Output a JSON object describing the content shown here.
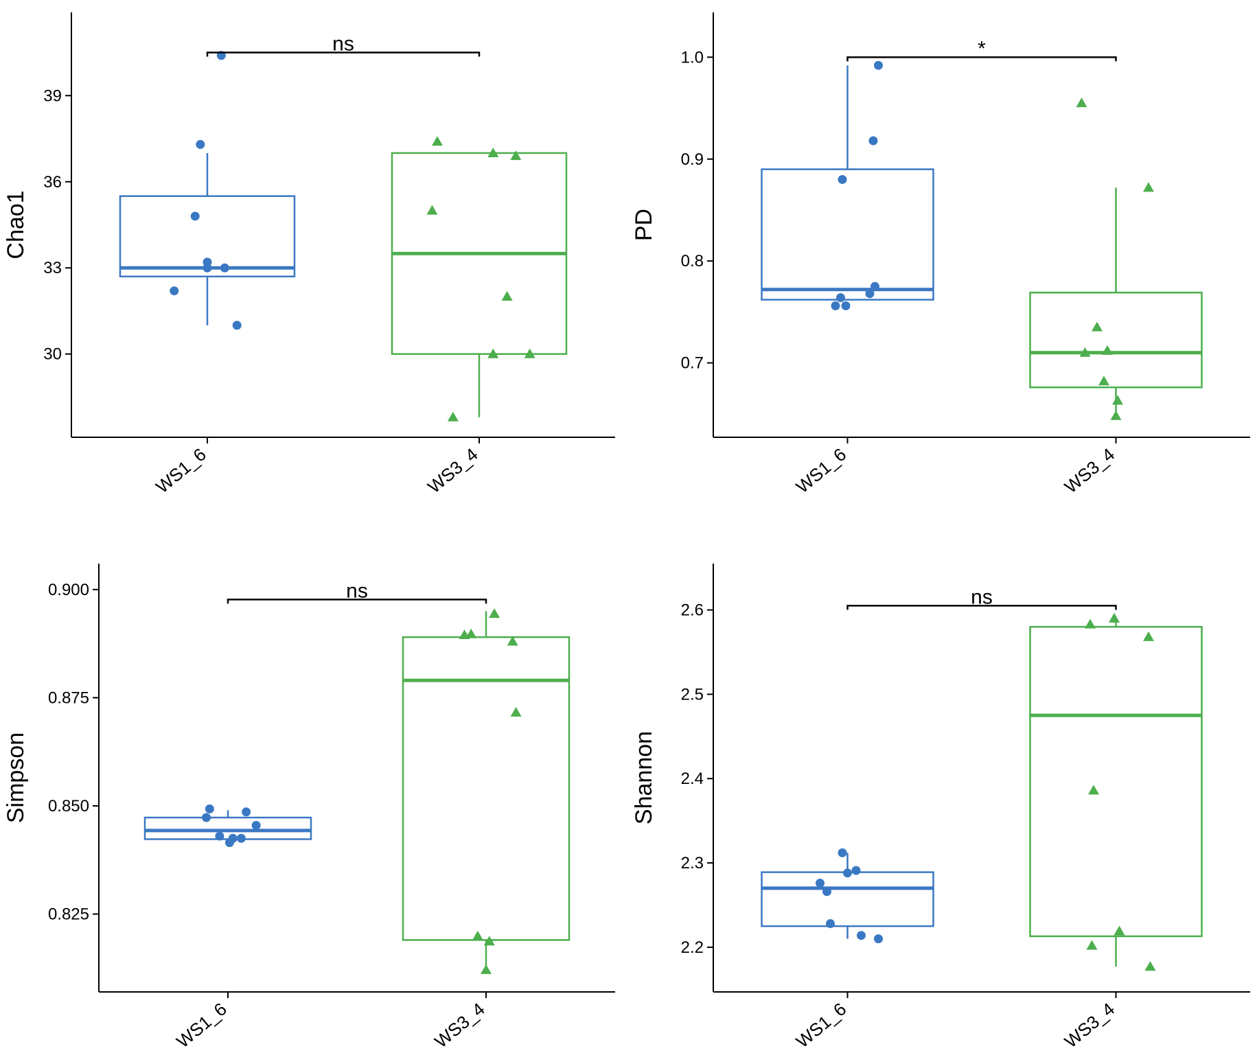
{
  "chart_data": [
    {
      "type": "box",
      "ylabel": "Chao1",
      "ylim": [
        27.1,
        41.9
      ],
      "yticks": [
        30,
        33,
        36,
        39
      ],
      "ytick_labels": [
        "30",
        "33",
        "36",
        "39"
      ],
      "categories": [
        "WS1_6",
        "WS3_4"
      ],
      "colors": [
        "#3a78c3",
        "#4cae4c"
      ],
      "boxes": [
        {
          "name": "WS1_6",
          "whisker_low": 31.0,
          "q1": 32.7,
          "median": 33.0,
          "q3": 35.5,
          "whisker_high": 37.0
        },
        {
          "name": "WS3_4",
          "whisker_low": 27.8,
          "q1": 30.0,
          "median": 33.5,
          "q3": 37.0,
          "whisker_high": 37.0
        }
      ],
      "points": [
        {
          "group": "WS1_6",
          "values": [
            40.4,
            37.3,
            34.8,
            33.2,
            33.0,
            33.0,
            32.2,
            31.0
          ],
          "jitter": [
            0.08,
            -0.04,
            -0.07,
            0.0,
            0.0,
            0.1,
            -0.19,
            0.17
          ]
        },
        {
          "group": "WS3_4",
          "values": [
            37.4,
            37.0,
            36.9,
            35.0,
            32.0,
            30.0,
            30.0,
            27.8
          ],
          "jitter": [
            -0.24,
            0.08,
            0.21,
            -0.27,
            0.16,
            0.08,
            0.29,
            -0.15
          ]
        }
      ],
      "significance": {
        "label": "ns",
        "from": "WS1_6",
        "to": "WS3_4",
        "y": 40.5
      }
    },
    {
      "type": "box",
      "ylabel": "PD",
      "ylim": [
        0.627,
        1.044
      ],
      "yticks": [
        0.7,
        0.8,
        0.9,
        1.0
      ],
      "ytick_labels": [
        "0.7",
        "0.8",
        "0.9",
        "1.0"
      ],
      "categories": [
        "WS1_6",
        "WS3_4"
      ],
      "colors": [
        "#3a78c3",
        "#4cae4c"
      ],
      "boxes": [
        {
          "name": "WS1_6",
          "whisker_low": 0.762,
          "q1": 0.762,
          "median": 0.772,
          "q3": 0.89,
          "whisker_high": 0.992
        },
        {
          "name": "WS3_4",
          "whisker_low": 0.648,
          "q1": 0.676,
          "median": 0.71,
          "q3": 0.769,
          "whisker_high": 0.872
        }
      ],
      "points": [
        {
          "group": "WS1_6",
          "values": [
            0.992,
            0.918,
            0.88,
            0.775,
            0.768,
            0.764,
            0.756,
            0.756
          ],
          "jitter": [
            0.18,
            0.15,
            -0.03,
            0.16,
            0.13,
            -0.04,
            -0.07,
            -0.01
          ]
        },
        {
          "group": "WS3_4",
          "values": [
            0.955,
            0.872,
            0.735,
            0.71,
            0.712,
            0.682,
            0.663,
            0.648
          ],
          "jitter": [
            -0.2,
            0.19,
            -0.11,
            -0.18,
            -0.05,
            -0.07,
            0.01,
            0.0
          ]
        }
      ],
      "significance": {
        "label": "*",
        "from": "WS1_6",
        "to": "WS3_4",
        "y": 1.0
      }
    },
    {
      "type": "box",
      "ylabel": "Simpson",
      "ylim": [
        0.807,
        0.906
      ],
      "yticks": [
        0.825,
        0.85,
        0.875,
        0.9
      ],
      "ytick_labels": [
        "0.825",
        "0.850",
        "0.875",
        "0.900"
      ],
      "categories": [
        "WS1_6",
        "WS3_4"
      ],
      "colors": [
        "#3a78c3",
        "#4cae4c"
      ],
      "boxes": [
        {
          "name": "WS1_6",
          "whisker_low": 0.8423,
          "q1": 0.8423,
          "median": 0.8443,
          "q3": 0.8473,
          "whisker_high": 0.849
        },
        {
          "name": "WS3_4",
          "whisker_low": 0.812,
          "q1": 0.819,
          "median": 0.879,
          "q3": 0.889,
          "whisker_high": 0.895
        }
      ],
      "points": [
        {
          "group": "WS1_6",
          "values": [
            0.8493,
            0.8486,
            0.8473,
            0.8455,
            0.843,
            0.8425,
            0.8425,
            0.8415
          ],
          "jitter": [
            -0.11,
            0.11,
            -0.13,
            0.17,
            -0.05,
            0.08,
            0.03,
            0.01
          ]
        },
        {
          "group": "WS3_4",
          "values": [
            0.8944,
            0.8895,
            0.8897,
            0.888,
            0.8716,
            0.8199,
            0.8187,
            0.8121
          ],
          "jitter": [
            0.05,
            -0.13,
            -0.09,
            0.16,
            0.18,
            -0.05,
            0.02,
            0.0
          ]
        }
      ],
      "significance": {
        "label": "ns",
        "from": "WS1_6",
        "to": "WS3_4",
        "y": 0.8977
      }
    },
    {
      "type": "box",
      "ylabel": "Shannon",
      "ylim": [
        2.147,
        2.655
      ],
      "yticks": [
        2.2,
        2.3,
        2.4,
        2.5,
        2.6
      ],
      "ytick_labels": [
        "2.2",
        "2.3",
        "2.4",
        "2.5",
        "2.6"
      ],
      "categories": [
        "WS1_6",
        "WS3_4"
      ],
      "colors": [
        "#3a78c3",
        "#4cae4c"
      ],
      "boxes": [
        {
          "name": "WS1_6",
          "whisker_low": 2.21,
          "q1": 2.225,
          "median": 2.27,
          "q3": 2.289,
          "whisker_high": 2.312
        },
        {
          "name": "WS3_4",
          "whisker_low": 2.177,
          "q1": 2.213,
          "median": 2.475,
          "q3": 2.58,
          "whisker_high": 2.59
        }
      ],
      "points": [
        {
          "group": "WS1_6",
          "values": [
            2.312,
            2.291,
            2.288,
            2.276,
            2.266,
            2.228,
            2.214,
            2.21
          ],
          "jitter": [
            -0.03,
            0.05,
            0.0,
            -0.16,
            -0.12,
            -0.1,
            0.08,
            0.18
          ]
        },
        {
          "group": "WS3_4",
          "values": [
            2.59,
            2.583,
            2.568,
            2.386,
            2.219,
            2.202,
            2.177
          ],
          "jitter": [
            -0.01,
            -0.15,
            0.19,
            -0.13,
            0.02,
            -0.14,
            0.2
          ]
        }
      ],
      "significance": {
        "label": "ns",
        "from": "WS1_6",
        "to": "WS3_4",
        "y": 2.605
      }
    }
  ]
}
